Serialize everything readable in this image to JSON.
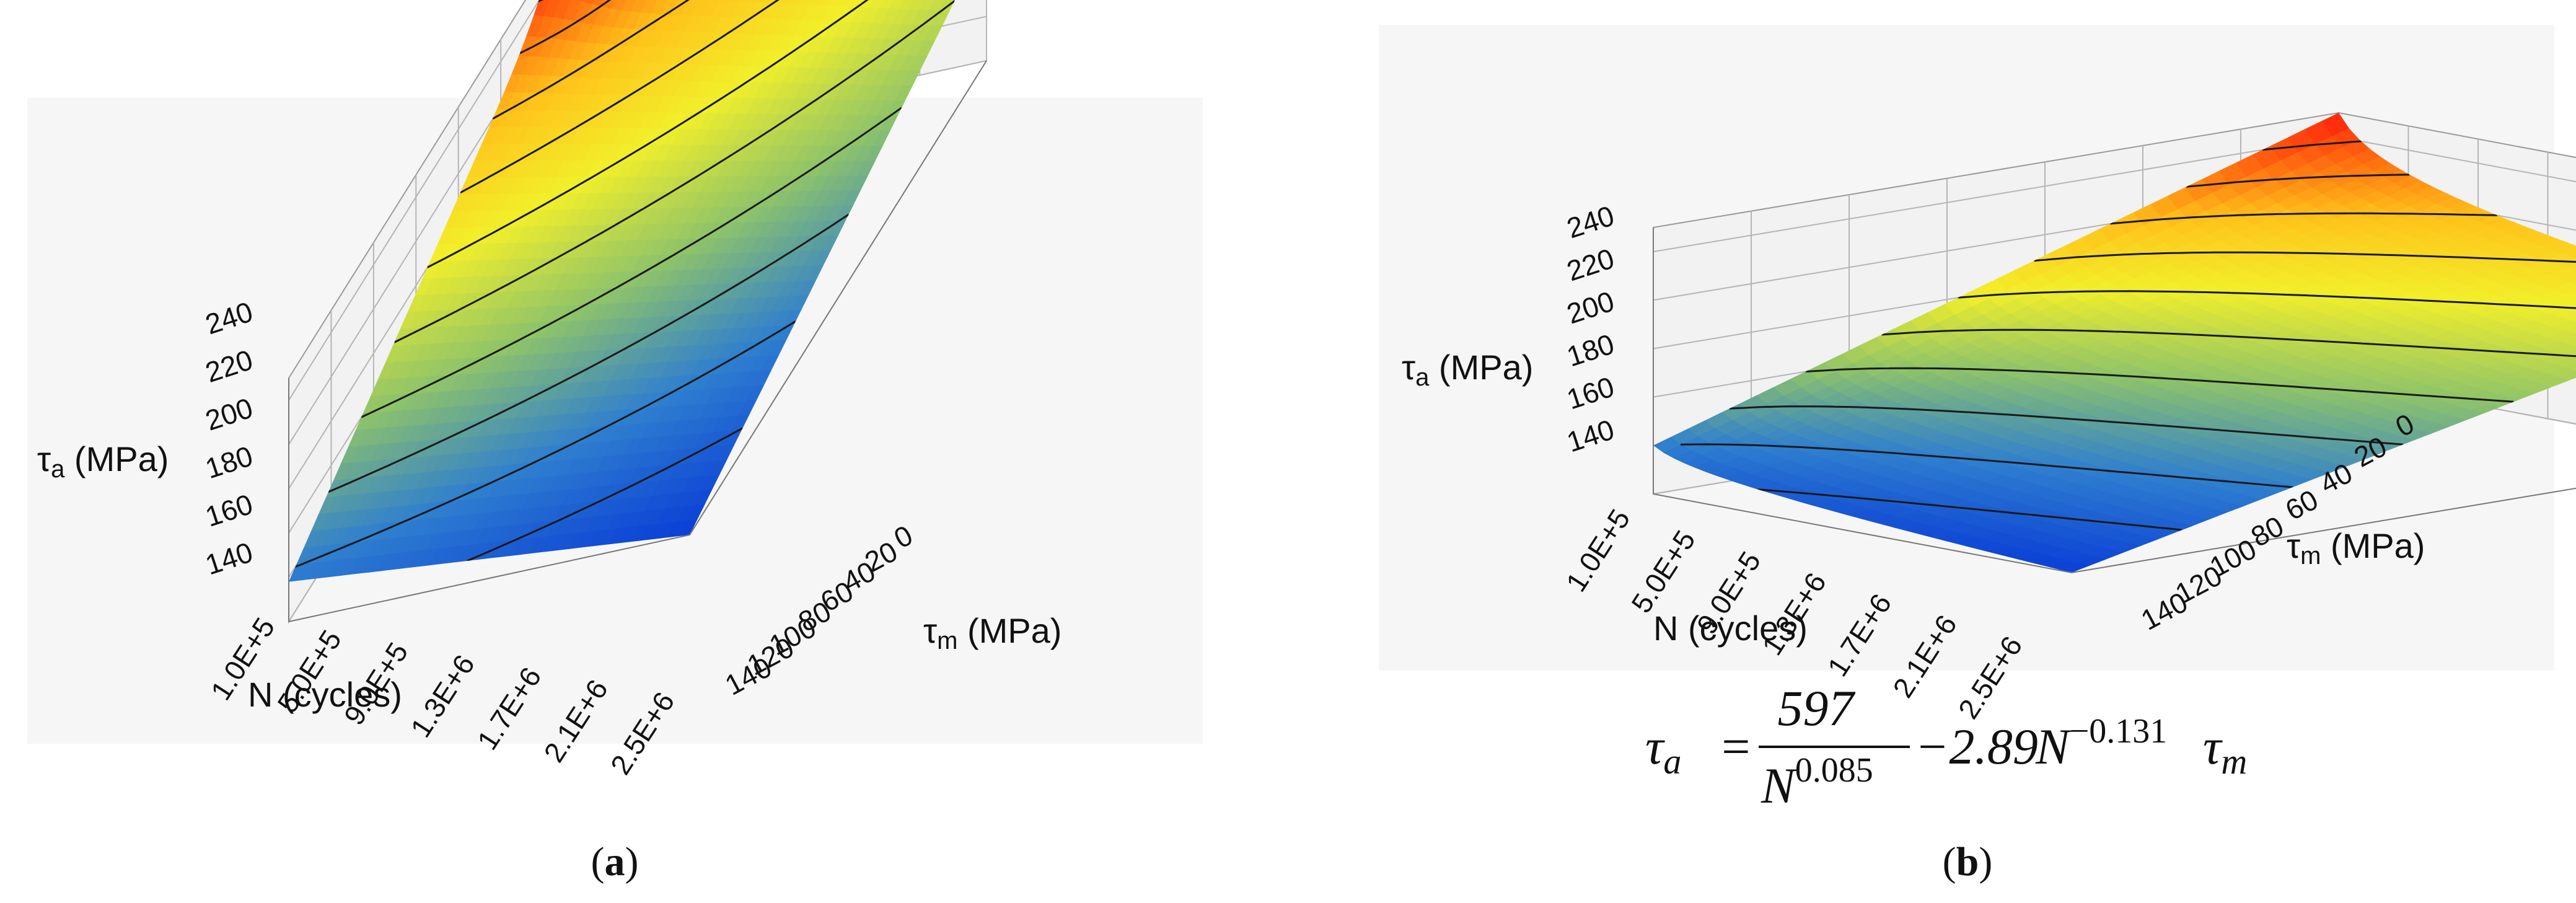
{
  "chart_data": [
    {
      "type": "surface",
      "panel_label": "a",
      "x_axis": {
        "label": "N (cycles)",
        "ticks": [
          "1.0E+5",
          "5.0E+5",
          "9.0E+5",
          "1.3E+6",
          "1.7E+6",
          "2.1E+6",
          "2.5E+6"
        ]
      },
      "y_axis": {
        "label_main": "τ",
        "label_sub": "m",
        "label_unit": " (MPa)",
        "ticks": [
          "0",
          "20",
          "40",
          "60",
          "80",
          "100",
          "120",
          "140"
        ]
      },
      "z_axis": {
        "label_main": "τ",
        "label_sub": "a",
        "label_unit": " (MPa)",
        "ticks": [
          "140",
          "160",
          "180",
          "200",
          "220",
          "240"
        ],
        "range": [
          140,
          250
        ]
      },
      "corner_values": {
        "n_min_tau_m_0": 248,
        "n_max_tau_m_0": 200,
        "n_min_tau_m_140": 158,
        "n_max_tau_m_140": 140
      },
      "colormap": [
        "#0a3fd6",
        "#2f7fcf",
        "#8ec36a",
        "#f2ef2a",
        "#ffc21a",
        "#ff6a10",
        "#ff1a0a"
      ],
      "grid": true
    },
    {
      "type": "surface",
      "panel_label": "b",
      "x_axis": {
        "label": "N (cycles)",
        "ticks": [
          "1.0E+5",
          "5.0E+5",
          "9.0E+5",
          "1.3E+6",
          "1.7E+6",
          "2.1E+6",
          "2.5E+6"
        ]
      },
      "y_axis": {
        "label_main": "τ",
        "label_sub": "m",
        "label_unit": " (MPa)",
        "ticks": [
          "0",
          "20",
          "40",
          "60",
          "80",
          "100",
          "120",
          "140"
        ]
      },
      "z_axis": {
        "label_main": "τ",
        "label_sub": "a",
        "label_unit": " (MPa)",
        "ticks": [
          "140",
          "160",
          "180",
          "200",
          "220",
          "240"
        ],
        "range": [
          140,
          250
        ]
      },
      "corner_values": {
        "n_min_tau_m_0": 250,
        "n_max_tau_m_0": 202,
        "n_min_tau_m_140": 160,
        "n_max_tau_m_140": 140
      },
      "model": {
        "A": 597,
        "p": 0.085,
        "B": 2.89,
        "q": 0.131
      },
      "colormap": [
        "#0a3fd6",
        "#2f7fcf",
        "#8ec36a",
        "#f2ef2a",
        "#ffc21a",
        "#ff6a10",
        "#ff1a0a"
      ],
      "grid": true
    }
  ],
  "equation": {
    "lhs_main": "τ",
    "lhs_sub": "a",
    "equals": "=",
    "numerator": "597",
    "denominator_base": "N",
    "denominator_exp": "0.085",
    "minus_term": "−2.89",
    "term_base": "N",
    "term_exp": "−0.131",
    "term_tau": "τ",
    "term_sub": "m"
  },
  "captions": {
    "a_open": "(",
    "a_label": "a",
    "a_close": ")",
    "b_open": "(",
    "b_label": "b",
    "b_close": ")"
  }
}
